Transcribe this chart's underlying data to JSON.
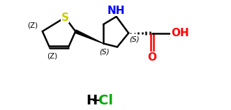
{
  "background_color": "#ffffff",
  "bond_color": "#000000",
  "S_color": "#cccc00",
  "N_color": "#0000ff",
  "O_color": "#ff0000",
  "Cl_color": "#00aa00",
  "lw": 1.8,
  "figsize": [
    3.31,
    1.58
  ],
  "dpi": 100,
  "xlim": [
    0,
    10.5
  ],
  "ylim": [
    -1.2,
    5.0
  ]
}
